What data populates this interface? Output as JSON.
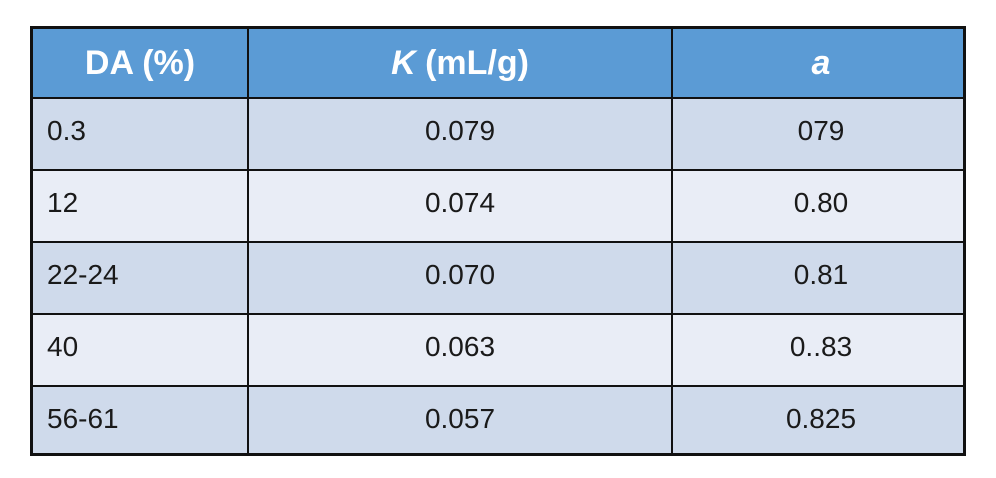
{
  "table": {
    "header": {
      "col1": "DA (%)",
      "col2_symbol": "K",
      "col2_unit": " (mL/g)",
      "col3_symbol": "a"
    },
    "rows": [
      {
        "da": "0.3",
        "k": "0.079",
        "a": "079"
      },
      {
        "da": "12",
        "k": "0.074",
        "a": "0.80"
      },
      {
        "da": "22-24",
        "k": "0.070",
        "a": "0.81"
      },
      {
        "da": "40",
        "k": "0.063",
        "a": "0..83"
      },
      {
        "da": "56-61",
        "k": "0.057",
        "a": "0.825"
      }
    ]
  },
  "colors": {
    "header_bg": "#5b9bd5",
    "row_odd_bg": "#cfdaeb",
    "row_even_bg": "#e9edf6",
    "border": "#111111"
  }
}
